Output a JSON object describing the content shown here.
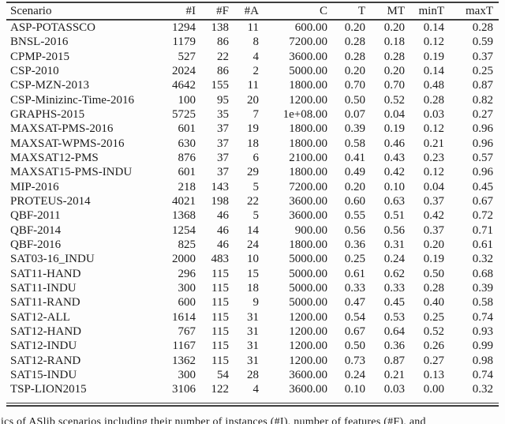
{
  "colors": {
    "background": "#fdfdfd",
    "text": "#1c1c1c",
    "rule": "#3d3d3d"
  },
  "caption": {
    "visible_fragment": "ics of ASlib scenarios including their number of instances (#I), number of features (#F), and"
  },
  "chart_data": {
    "type": "table",
    "columns": [
      "Scenario",
      "#I",
      "#F",
      "#A",
      "C",
      "T",
      "MT",
      "minT",
      "maxT"
    ],
    "rows": [
      [
        "ASP-POTASSCO",
        "1294",
        "138",
        "11",
        "600.00",
        "0.20",
        "0.20",
        "0.14",
        "0.28"
      ],
      [
        "BNSL-2016",
        "1179",
        "86",
        "8",
        "7200.00",
        "0.28",
        "0.18",
        "0.12",
        "0.59"
      ],
      [
        "CPMP-2015",
        "527",
        "22",
        "4",
        "3600.00",
        "0.28",
        "0.28",
        "0.19",
        "0.37"
      ],
      [
        "CSP-2010",
        "2024",
        "86",
        "2",
        "5000.00",
        "0.20",
        "0.20",
        "0.14",
        "0.25"
      ],
      [
        "CSP-MZN-2013",
        "4642",
        "155",
        "11",
        "1800.00",
        "0.70",
        "0.70",
        "0.48",
        "0.87"
      ],
      [
        "CSP-Minizinc-Time-2016",
        "100",
        "95",
        "20",
        "1200.00",
        "0.50",
        "0.52",
        "0.28",
        "0.82"
      ],
      [
        "GRAPHS-2015",
        "5725",
        "35",
        "7",
        "1e+08.00",
        "0.07",
        "0.04",
        "0.03",
        "0.27"
      ],
      [
        "MAXSAT-PMS-2016",
        "601",
        "37",
        "19",
        "1800.00",
        "0.39",
        "0.19",
        "0.12",
        "0.96"
      ],
      [
        "MAXSAT-WPMS-2016",
        "630",
        "37",
        "18",
        "1800.00",
        "0.58",
        "0.46",
        "0.21",
        "0.96"
      ],
      [
        "MAXSAT12-PMS",
        "876",
        "37",
        "6",
        "2100.00",
        "0.41",
        "0.43",
        "0.23",
        "0.57"
      ],
      [
        "MAXSAT15-PMS-INDU",
        "601",
        "37",
        "29",
        "1800.00",
        "0.49",
        "0.42",
        "0.12",
        "0.96"
      ],
      [
        "MIP-2016",
        "218",
        "143",
        "5",
        "7200.00",
        "0.20",
        "0.10",
        "0.04",
        "0.45"
      ],
      [
        "PROTEUS-2014",
        "4021",
        "198",
        "22",
        "3600.00",
        "0.60",
        "0.63",
        "0.37",
        "0.67"
      ],
      [
        "QBF-2011",
        "1368",
        "46",
        "5",
        "3600.00",
        "0.55",
        "0.51",
        "0.42",
        "0.72"
      ],
      [
        "QBF-2014",
        "1254",
        "46",
        "14",
        "900.00",
        "0.56",
        "0.56",
        "0.37",
        "0.71"
      ],
      [
        "QBF-2016",
        "825",
        "46",
        "24",
        "1800.00",
        "0.36",
        "0.31",
        "0.20",
        "0.61"
      ],
      [
        "SAT03-16_INDU",
        "2000",
        "483",
        "10",
        "5000.00",
        "0.25",
        "0.24",
        "0.19",
        "0.32"
      ],
      [
        "SAT11-HAND",
        "296",
        "115",
        "15",
        "5000.00",
        "0.61",
        "0.62",
        "0.50",
        "0.68"
      ],
      [
        "SAT11-INDU",
        "300",
        "115",
        "18",
        "5000.00",
        "0.33",
        "0.33",
        "0.28",
        "0.39"
      ],
      [
        "SAT11-RAND",
        "600",
        "115",
        "9",
        "5000.00",
        "0.47",
        "0.45",
        "0.40",
        "0.58"
      ],
      [
        "SAT12-ALL",
        "1614",
        "115",
        "31",
        "1200.00",
        "0.54",
        "0.53",
        "0.25",
        "0.74"
      ],
      [
        "SAT12-HAND",
        "767",
        "115",
        "31",
        "1200.00",
        "0.67",
        "0.64",
        "0.52",
        "0.93"
      ],
      [
        "SAT12-INDU",
        "1167",
        "115",
        "31",
        "1200.00",
        "0.50",
        "0.36",
        "0.26",
        "0.99"
      ],
      [
        "SAT12-RAND",
        "1362",
        "115",
        "31",
        "1200.00",
        "0.73",
        "0.87",
        "0.27",
        "0.98"
      ],
      [
        "SAT15-INDU",
        "300",
        "54",
        "28",
        "3600.00",
        "0.24",
        "0.21",
        "0.13",
        "0.74"
      ],
      [
        "TSP-LION2015",
        "3106",
        "122",
        "4",
        "3600.00",
        "0.10",
        "0.03",
        "0.00",
        "0.32"
      ]
    ]
  }
}
